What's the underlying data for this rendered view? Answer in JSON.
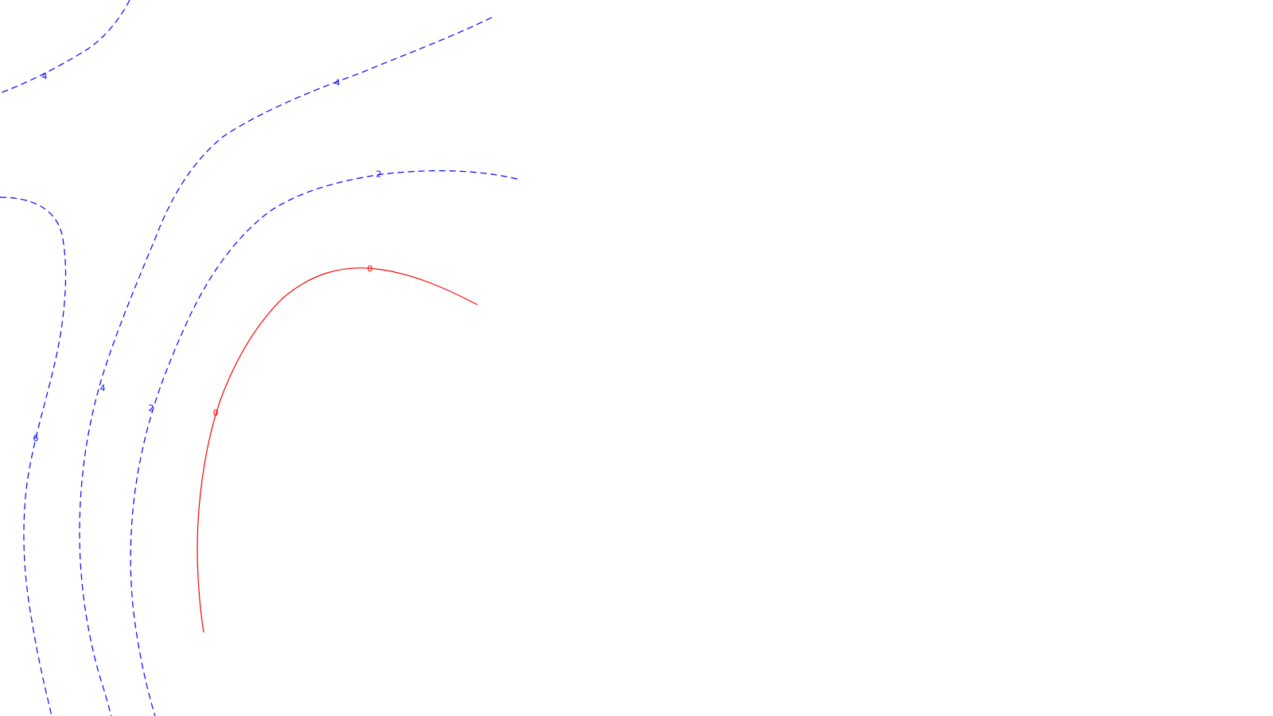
{
  "chart_data": {
    "type": "contour",
    "title": "",
    "xlabel": "",
    "ylabel": "",
    "grid": false,
    "colors": {
      "zero": "#ff0000",
      "positive": "#0000ff",
      "background": "#ffffff"
    },
    "levels": [
      {
        "level": 0,
        "label": "0",
        "style": "solid",
        "color": "#ff0000"
      },
      {
        "level": 2,
        "label": "2",
        "style": "dashed",
        "color": "#0000ff"
      },
      {
        "level": 4,
        "label": "4",
        "style": "dashed",
        "color": "#0000ff"
      },
      {
        "level": 6,
        "label": "6",
        "style": "dashed",
        "color": "#0000ff"
      }
    ],
    "contours": [
      {
        "level": 0,
        "label": "0"
      },
      {
        "level": 2,
        "label": "2"
      },
      {
        "level": 4,
        "label": "4"
      },
      {
        "level": 4,
        "label": "4"
      },
      {
        "level": 6,
        "label": "6"
      }
    ]
  }
}
